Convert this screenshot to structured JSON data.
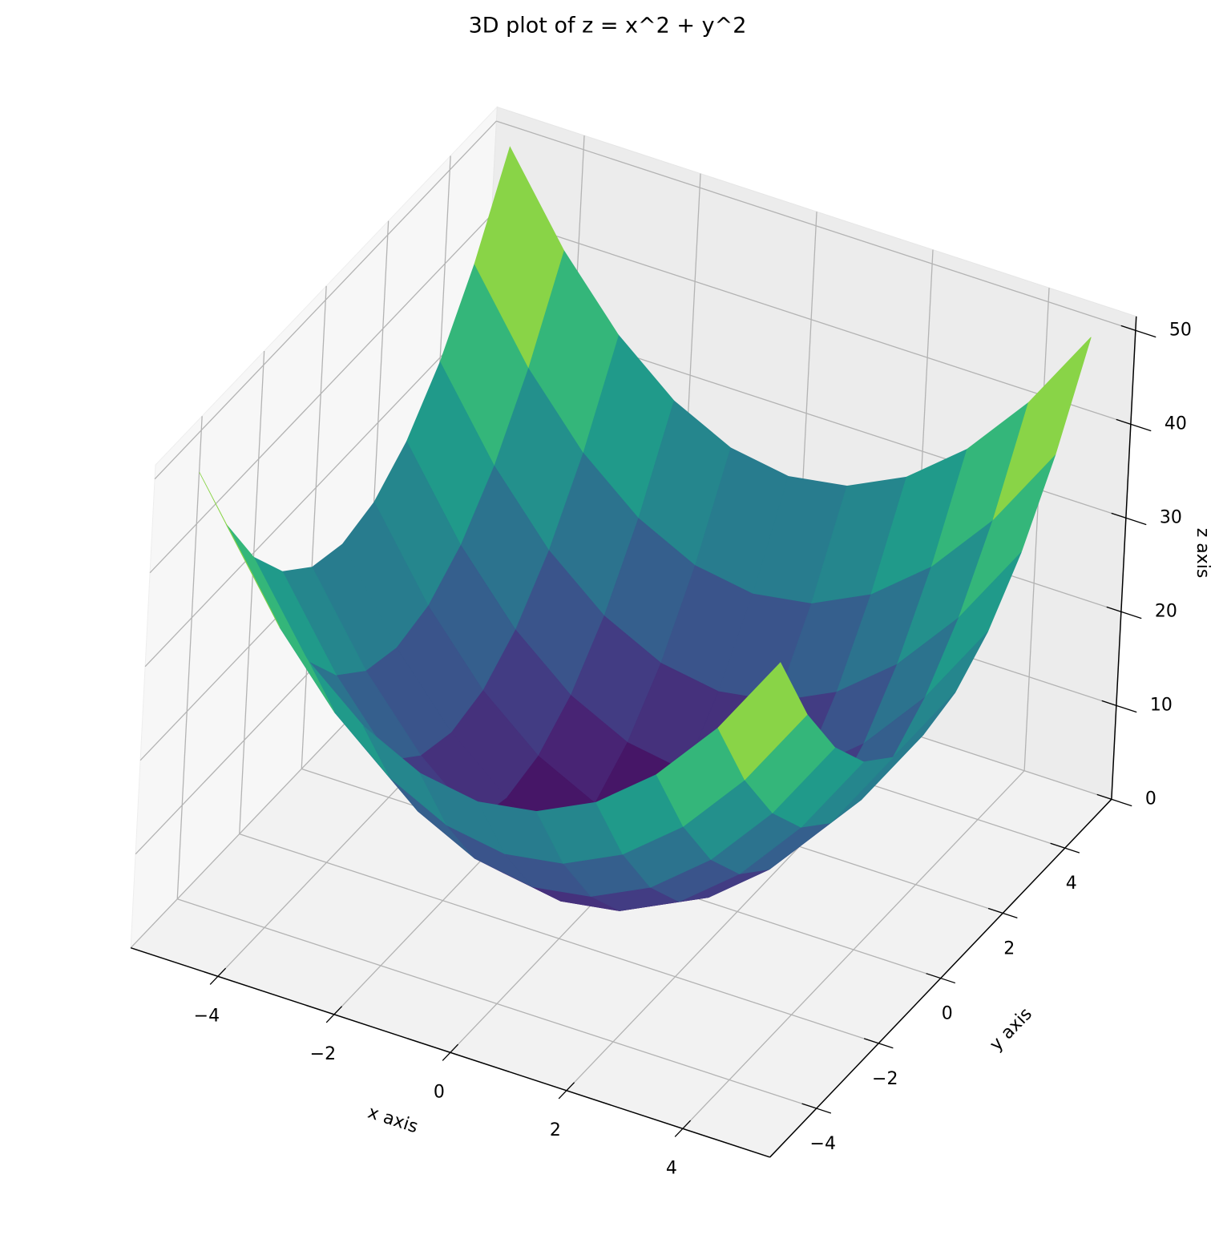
{
  "chart_data": {
    "type": "surface",
    "title": "3D plot of z = x^2 + y^2",
    "xlabel": "x axis",
    "ylabel": "y axis",
    "zlabel": "z axis",
    "colormap": "viridis",
    "grid": true,
    "x": [
      -5,
      -4,
      -3,
      -2,
      -1,
      0,
      1,
      2,
      3,
      4,
      5
    ],
    "y": [
      -5,
      -4,
      -3,
      -2,
      -1,
      0,
      1,
      2,
      3,
      4,
      5
    ],
    "z": [
      [
        50,
        41,
        34,
        29,
        26,
        25,
        26,
        29,
        34,
        41,
        50
      ],
      [
        41,
        32,
        25,
        20,
        17,
        16,
        17,
        20,
        25,
        32,
        41
      ],
      [
        34,
        25,
        18,
        13,
        10,
        9,
        10,
        13,
        18,
        25,
        34
      ],
      [
        29,
        20,
        13,
        8,
        5,
        4,
        5,
        8,
        13,
        20,
        29
      ],
      [
        26,
        17,
        10,
        5,
        2,
        1,
        2,
        5,
        10,
        17,
        26
      ],
      [
        25,
        16,
        9,
        4,
        1,
        0,
        1,
        4,
        9,
        16,
        25
      ],
      [
        26,
        17,
        10,
        5,
        2,
        1,
        2,
        5,
        10,
        17,
        26
      ],
      [
        29,
        20,
        13,
        8,
        5,
        4,
        5,
        8,
        13,
        20,
        29
      ],
      [
        34,
        25,
        18,
        13,
        10,
        9,
        10,
        13,
        18,
        25,
        34
      ],
      [
        41,
        32,
        25,
        20,
        17,
        16,
        17,
        20,
        25,
        32,
        41
      ],
      [
        50,
        41,
        34,
        29,
        26,
        25,
        26,
        29,
        34,
        41,
        50
      ]
    ],
    "xlim": [
      -5.5,
      5.5
    ],
    "ylim": [
      -5.5,
      5.5
    ],
    "zlim": [
      0,
      51.5
    ],
    "xticks": [
      {
        "value": -4,
        "label": "−4"
      },
      {
        "value": -2,
        "label": "−2"
      },
      0,
      2,
      4
    ],
    "yticks": [
      {
        "value": -4,
        "label": "−4"
      },
      {
        "value": -2,
        "label": "−2"
      },
      0,
      2,
      4
    ],
    "zticks": [
      0,
      10,
      20,
      30,
      40,
      50
    ]
  }
}
